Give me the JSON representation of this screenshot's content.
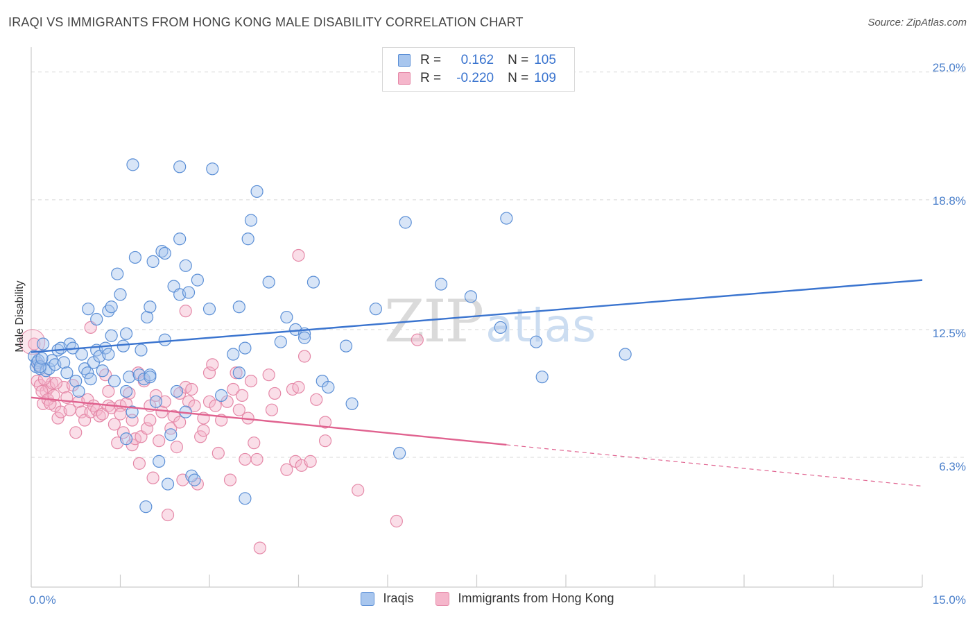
{
  "title": "IRAQI VS IMMIGRANTS FROM HONG KONG MALE DISABILITY CORRELATION CHART",
  "source": "Source: ZipAtlas.com",
  "watermark": {
    "part1": "ZIP",
    "part2": "atlas"
  },
  "colors": {
    "blue": "#3a74cf",
    "blue_fill": "#a8c6ee",
    "pink": "#e0628f",
    "pink_fill": "#f5b6cb",
    "tick": "#4a7fcb",
    "grid": "#d9d9d9"
  },
  "legend": {
    "rows": [
      {
        "r_label": "R =",
        "r_value": "0.162",
        "n_label": "N =",
        "n_value": "105"
      },
      {
        "r_label": "R =",
        "r_value": "-0.220",
        "n_label": "N =",
        "n_value": "109"
      }
    ]
  },
  "bottom_legend": {
    "series1": "Iraqis",
    "series2": "Immigrants from Hong Kong"
  },
  "chart_data": {
    "type": "scatter",
    "title": "IRAQI VS IMMIGRANTS FROM HONG KONG MALE DISABILITY CORRELATION CHART",
    "xlabel": "",
    "ylabel": "Male Disability",
    "xlim": [
      0,
      15
    ],
    "ylim": [
      0,
      25.8
    ],
    "x_tick_labels": [
      "0.0%",
      "15.0%"
    ],
    "y_ticks": [
      6.3,
      12.5,
      18.8,
      25.0
    ],
    "y_tick_labels": [
      "6.3%",
      "12.5%",
      "18.8%",
      "25.0%"
    ],
    "series": [
      {
        "name": "Iraqis",
        "trend": {
          "x": [
            0,
            15
          ],
          "y": [
            11.4,
            14.9
          ],
          "dashed_from": null
        },
        "points": [
          [
            0.05,
            11.2
          ],
          [
            0.08,
            10.7
          ],
          [
            0.1,
            10.9
          ],
          [
            0.12,
            11.0
          ],
          [
            0.15,
            10.6
          ],
          [
            0.2,
            11.8
          ],
          [
            0.25,
            10.5
          ],
          [
            0.3,
            10.6
          ],
          [
            0.35,
            11.0
          ],
          [
            0.4,
            10.8
          ],
          [
            0.45,
            11.5
          ],
          [
            0.5,
            11.6
          ],
          [
            0.55,
            10.9
          ],
          [
            0.6,
            10.4
          ],
          [
            0.65,
            11.8
          ],
          [
            0.7,
            11.6
          ],
          [
            0.75,
            10.0
          ],
          [
            0.8,
            9.5
          ],
          [
            0.85,
            11.3
          ],
          [
            0.9,
            10.6
          ],
          [
            0.95,
            10.4
          ],
          [
            1.0,
            10.1
          ],
          [
            1.05,
            10.9
          ],
          [
            1.1,
            11.5
          ],
          [
            1.15,
            11.2
          ],
          [
            1.2,
            10.5
          ],
          [
            1.25,
            11.6
          ],
          [
            1.3,
            11.3
          ],
          [
            1.35,
            12.2
          ],
          [
            1.4,
            10.0
          ],
          [
            0.96,
            13.5
          ],
          [
            1.1,
            13.0
          ],
          [
            1.3,
            13.4
          ],
          [
            1.35,
            13.6
          ],
          [
            1.45,
            15.2
          ],
          [
            1.5,
            14.2
          ],
          [
            1.55,
            11.7
          ],
          [
            1.6,
            12.3
          ],
          [
            1.6,
            9.5
          ],
          [
            1.6,
            7.2
          ],
          [
            1.65,
            10.2
          ],
          [
            1.7,
            8.5
          ],
          [
            1.71,
            20.5
          ],
          [
            1.75,
            16.0
          ],
          [
            1.82,
            10.3
          ],
          [
            1.85,
            11.5
          ],
          [
            1.9,
            10.1
          ],
          [
            1.93,
            3.9
          ],
          [
            1.95,
            13.1
          ],
          [
            2.0,
            10.3
          ],
          [
            2.0,
            10.2
          ],
          [
            2.0,
            13.6
          ],
          [
            2.05,
            15.8
          ],
          [
            2.1,
            9.0
          ],
          [
            2.15,
            6.1
          ],
          [
            2.2,
            16.3
          ],
          [
            2.25,
            16.2
          ],
          [
            2.25,
            12.0
          ],
          [
            2.3,
            5.0
          ],
          [
            2.35,
            7.4
          ],
          [
            2.4,
            14.6
          ],
          [
            2.45,
            9.5
          ],
          [
            2.5,
            14.2
          ],
          [
            2.5,
            16.9
          ],
          [
            2.5,
            20.4
          ],
          [
            2.6,
            15.6
          ],
          [
            2.6,
            8.5
          ],
          [
            2.65,
            14.3
          ],
          [
            2.7,
            5.4
          ],
          [
            2.75,
            5.2
          ],
          [
            2.8,
            14.9
          ],
          [
            3.0,
            13.5
          ],
          [
            3.05,
            20.3
          ],
          [
            3.2,
            9.3
          ],
          [
            3.4,
            11.3
          ],
          [
            3.5,
            10.4
          ],
          [
            3.5,
            13.6
          ],
          [
            3.6,
            11.6
          ],
          [
            3.6,
            4.3
          ],
          [
            3.65,
            16.9
          ],
          [
            3.7,
            17.8
          ],
          [
            3.8,
            19.2
          ],
          [
            4.0,
            14.8
          ],
          [
            4.2,
            11.9
          ],
          [
            4.3,
            13.1
          ],
          [
            4.45,
            12.5
          ],
          [
            4.6,
            12.3
          ],
          [
            4.6,
            12.1
          ],
          [
            4.75,
            14.8
          ],
          [
            4.9,
            10.0
          ],
          [
            5.0,
            9.7
          ],
          [
            5.3,
            11.7
          ],
          [
            5.4,
            8.9
          ],
          [
            5.8,
            13.5
          ],
          [
            6.2,
            6.5
          ],
          [
            6.3,
            17.7
          ],
          [
            6.9,
            14.7
          ],
          [
            7.4,
            14.1
          ],
          [
            7.9,
            12.6
          ],
          [
            8.0,
            17.9
          ],
          [
            8.5,
            11.9
          ],
          [
            8.6,
            10.2
          ],
          [
            10.0,
            11.3
          ],
          [
            0.15,
            10.7
          ],
          [
            0.18,
            11.1
          ]
        ]
      },
      {
        "name": "Immigrants from Hong Kong",
        "trend": {
          "x": [
            0,
            15
          ],
          "y": [
            9.2,
            4.9
          ],
          "dashed_from": 8.0
        },
        "points": [
          [
            0.05,
            11.8
          ],
          [
            0.1,
            10.0
          ],
          [
            0.12,
            10.8
          ],
          [
            0.15,
            9.8
          ],
          [
            0.2,
            8.9
          ],
          [
            0.25,
            9.5
          ],
          [
            0.3,
            9.7
          ],
          [
            0.35,
            9.9
          ],
          [
            0.4,
            8.8
          ],
          [
            0.45,
            8.2
          ],
          [
            0.5,
            8.5
          ],
          [
            0.55,
            9.7
          ],
          [
            0.6,
            9.2
          ],
          [
            0.65,
            8.6
          ],
          [
            0.7,
            9.8
          ],
          [
            0.75,
            7.5
          ],
          [
            0.8,
            9.0
          ],
          [
            0.85,
            8.5
          ],
          [
            0.9,
            8.1
          ],
          [
            0.95,
            9.1
          ],
          [
            1.0,
            12.6
          ],
          [
            1.0,
            8.5
          ],
          [
            1.05,
            8.8
          ],
          [
            1.1,
            8.6
          ],
          [
            1.15,
            8.3
          ],
          [
            1.2,
            8.4
          ],
          [
            1.25,
            10.3
          ],
          [
            1.3,
            9.5
          ],
          [
            1.3,
            8.8
          ],
          [
            1.35,
            8.7
          ],
          [
            1.4,
            7.9
          ],
          [
            1.45,
            7.0
          ],
          [
            1.5,
            8.8
          ],
          [
            1.5,
            8.4
          ],
          [
            1.55,
            7.5
          ],
          [
            1.6,
            8.9
          ],
          [
            1.65,
            9.4
          ],
          [
            1.7,
            8.1
          ],
          [
            1.7,
            6.9
          ],
          [
            1.75,
            7.2
          ],
          [
            1.8,
            10.4
          ],
          [
            1.82,
            6.0
          ],
          [
            1.85,
            7.3
          ],
          [
            1.9,
            10.0
          ],
          [
            1.95,
            7.7
          ],
          [
            2.0,
            8.8
          ],
          [
            2.0,
            8.1
          ],
          [
            2.05,
            5.3
          ],
          [
            2.1,
            9.3
          ],
          [
            2.15,
            7.1
          ],
          [
            2.2,
            8.5
          ],
          [
            2.25,
            9.0
          ],
          [
            2.3,
            3.5
          ],
          [
            2.35,
            7.7
          ],
          [
            2.4,
            8.3
          ],
          [
            2.45,
            6.8
          ],
          [
            2.5,
            9.4
          ],
          [
            2.5,
            8.0
          ],
          [
            2.55,
            5.2
          ],
          [
            2.6,
            13.4
          ],
          [
            2.6,
            9.7
          ],
          [
            2.65,
            9.0
          ],
          [
            2.7,
            9.6
          ],
          [
            2.75,
            8.8
          ],
          [
            2.8,
            5.0
          ],
          [
            2.85,
            7.3
          ],
          [
            2.9,
            8.2
          ],
          [
            2.9,
            7.6
          ],
          [
            3.0,
            9.0
          ],
          [
            3.0,
            10.4
          ],
          [
            3.05,
            10.8
          ],
          [
            3.1,
            8.8
          ],
          [
            3.15,
            6.5
          ],
          [
            3.2,
            8.1
          ],
          [
            3.3,
            9.0
          ],
          [
            3.35,
            5.2
          ],
          [
            3.4,
            9.6
          ],
          [
            3.45,
            10.4
          ],
          [
            3.5,
            8.6
          ],
          [
            3.55,
            9.3
          ],
          [
            3.6,
            6.2
          ],
          [
            3.65,
            8.2
          ],
          [
            3.7,
            10.0
          ],
          [
            3.75,
            7.0
          ],
          [
            3.8,
            6.2
          ],
          [
            3.85,
            1.9
          ],
          [
            4.0,
            10.3
          ],
          [
            4.05,
            8.6
          ],
          [
            4.1,
            9.4
          ],
          [
            4.3,
            5.7
          ],
          [
            4.4,
            9.6
          ],
          [
            4.45,
            6.1
          ],
          [
            4.5,
            16.1
          ],
          [
            4.5,
            9.7
          ],
          [
            4.55,
            5.9
          ],
          [
            4.6,
            11.2
          ],
          [
            4.7,
            6.1
          ],
          [
            4.8,
            9.1
          ],
          [
            4.95,
            7.1
          ],
          [
            4.95,
            8.0
          ],
          [
            5.5,
            4.7
          ],
          [
            6.15,
            3.2
          ],
          [
            6.5,
            12.0
          ],
          [
            0.18,
            9.5
          ],
          [
            0.22,
            10.1
          ],
          [
            0.28,
            9.1
          ],
          [
            0.32,
            8.9
          ],
          [
            0.38,
            9.3
          ],
          [
            0.42,
            9.9
          ]
        ]
      }
    ]
  }
}
